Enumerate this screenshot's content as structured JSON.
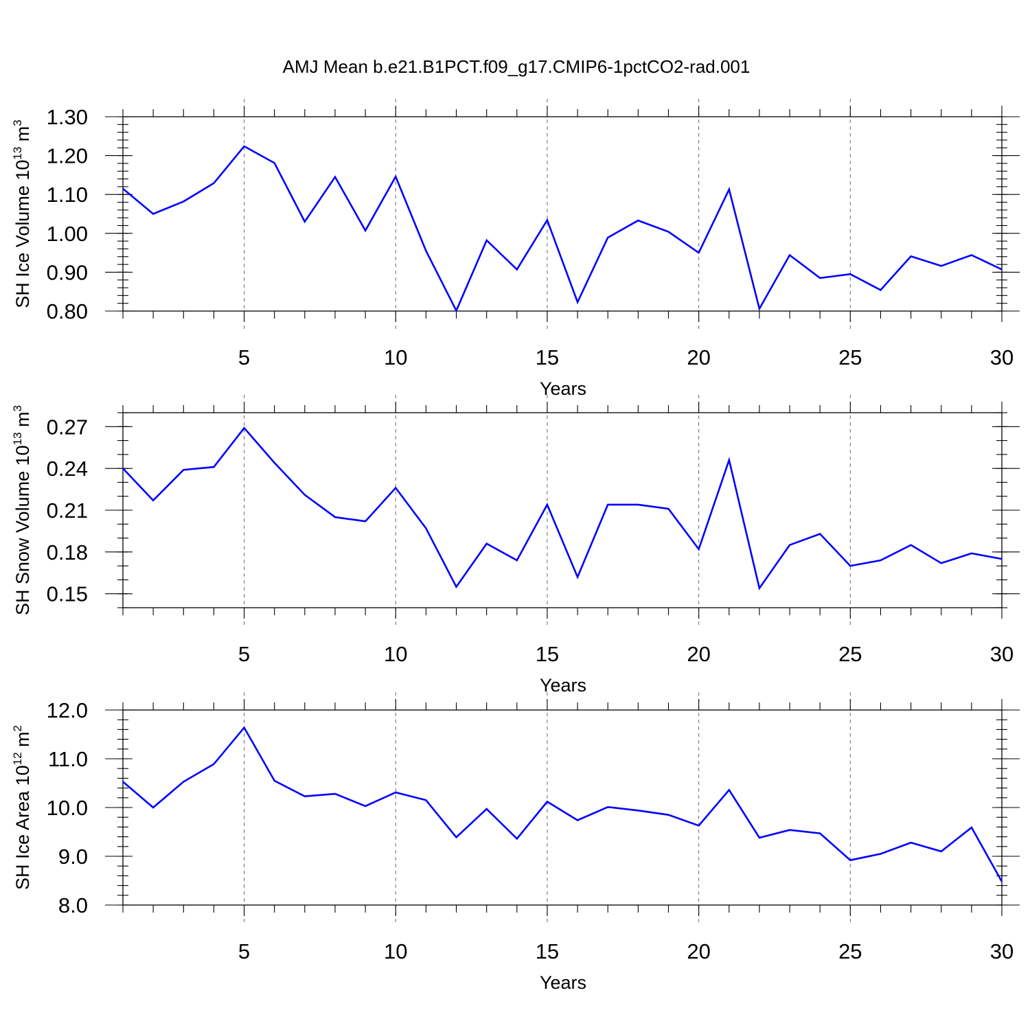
{
  "figure_title": "AMJ Mean b.e21.B1PCT.f09_g17.CMIP6-1pctCO2-rad.001",
  "colors": {
    "line": "#0000ff",
    "grid": "#777777",
    "axis": "#000000"
  },
  "chart_data": [
    {
      "type": "line",
      "title": "",
      "ylabel_base": "SH Ice Volume 10",
      "ylabel_exp": "13",
      "ylabel_unit": " m",
      "ylabel_unit_exp": "3",
      "xlabel": "Years",
      "xlim": [
        1,
        30
      ],
      "ylim": [
        0.8,
        1.3
      ],
      "yticks": [
        0.8,
        0.9,
        1.0,
        1.1,
        1.2,
        1.3
      ],
      "ytick_labels": [
        "0.80",
        "0.90",
        "1.00",
        "1.10",
        "1.20",
        "1.30"
      ],
      "yminor_step": 0.02,
      "xticks": [
        5,
        10,
        15,
        20,
        25,
        30
      ],
      "xtick_labels": [
        "5",
        "10",
        "15",
        "20",
        "25",
        "30"
      ],
      "grid_x": [
        5,
        10,
        15,
        20,
        25
      ],
      "series": [
        {
          "name": "SH Ice Volume",
          "x": [
            1,
            2,
            3,
            4,
            5,
            6,
            7,
            8,
            9,
            10,
            11,
            12,
            13,
            14,
            15,
            16,
            17,
            18,
            19,
            20,
            21,
            22,
            23,
            24,
            25,
            26,
            27,
            28,
            29,
            30
          ],
          "values": [
            1.115,
            1.05,
            1.082,
            1.129,
            1.224,
            1.181,
            1.03,
            1.145,
            1.007,
            1.146,
            0.955,
            0.801,
            0.982,
            0.907,
            1.034,
            0.823,
            0.989,
            1.033,
            1.004,
            0.95,
            1.113,
            0.806,
            0.944,
            0.885,
            0.895,
            0.854,
            0.941,
            0.916,
            0.944,
            0.907
          ]
        }
      ]
    },
    {
      "type": "line",
      "title": "",
      "ylabel_base": "SH Snow Volume 10",
      "ylabel_exp": "13",
      "ylabel_unit": " m",
      "ylabel_unit_exp": "3",
      "xlabel": "Years",
      "xlim": [
        1,
        30
      ],
      "ylim": [
        0.14,
        0.28
      ],
      "yticks": [
        0.15,
        0.18,
        0.21,
        0.24,
        0.27
      ],
      "ytick_labels": [
        "0.15",
        "0.18",
        "0.21",
        "0.24",
        "0.27"
      ],
      "yminor_step": 0.01,
      "xticks": [
        5,
        10,
        15,
        20,
        25,
        30
      ],
      "xtick_labels": [
        "5",
        "10",
        "15",
        "20",
        "25",
        "30"
      ],
      "grid_x": [
        5,
        10,
        15,
        20,
        25
      ],
      "series": [
        {
          "name": "SH Snow Volume",
          "x": [
            1,
            2,
            3,
            4,
            5,
            6,
            7,
            8,
            9,
            10,
            11,
            12,
            13,
            14,
            15,
            16,
            17,
            18,
            19,
            20,
            21,
            22,
            23,
            24,
            25,
            26,
            27,
            28,
            29,
            30
          ],
          "values": [
            0.24,
            0.217,
            0.239,
            0.241,
            0.269,
            0.244,
            0.221,
            0.205,
            0.202,
            0.226,
            0.197,
            0.155,
            0.186,
            0.174,
            0.214,
            0.162,
            0.214,
            0.214,
            0.211,
            0.182,
            0.246,
            0.154,
            0.185,
            0.193,
            0.17,
            0.174,
            0.185,
            0.172,
            0.179,
            0.175
          ]
        }
      ]
    },
    {
      "type": "line",
      "title": "",
      "ylabel_base": "SH Ice Area 10",
      "ylabel_exp": "12",
      "ylabel_unit": " m",
      "ylabel_unit_exp": "2",
      "xlabel": "Years",
      "xlim": [
        1,
        30
      ],
      "ylim": [
        8.0,
        12.0
      ],
      "yticks": [
        8.0,
        9.0,
        10.0,
        11.0,
        12.0
      ],
      "ytick_labels": [
        "8.0",
        "9.0",
        "10.0",
        "11.0",
        "12.0"
      ],
      "yminor_step": 0.2,
      "xticks": [
        5,
        10,
        15,
        20,
        25,
        30
      ],
      "xtick_labels": [
        "5",
        "10",
        "15",
        "20",
        "25",
        "30"
      ],
      "grid_x": [
        5,
        10,
        15,
        20,
        25
      ],
      "series": [
        {
          "name": "SH Ice Area",
          "x": [
            1,
            2,
            3,
            4,
            5,
            6,
            7,
            8,
            9,
            10,
            11,
            12,
            13,
            14,
            15,
            16,
            17,
            18,
            19,
            20,
            21,
            22,
            23,
            24,
            25,
            26,
            27,
            28,
            29,
            30
          ],
          "values": [
            10.53,
            10.0,
            10.53,
            10.89,
            11.64,
            10.55,
            10.23,
            10.28,
            10.03,
            10.31,
            10.15,
            9.39,
            9.97,
            9.36,
            10.12,
            9.74,
            10.01,
            9.94,
            9.85,
            9.63,
            10.36,
            9.38,
            9.54,
            9.47,
            8.92,
            9.05,
            9.28,
            9.1,
            9.59,
            8.48
          ]
        }
      ]
    }
  ]
}
